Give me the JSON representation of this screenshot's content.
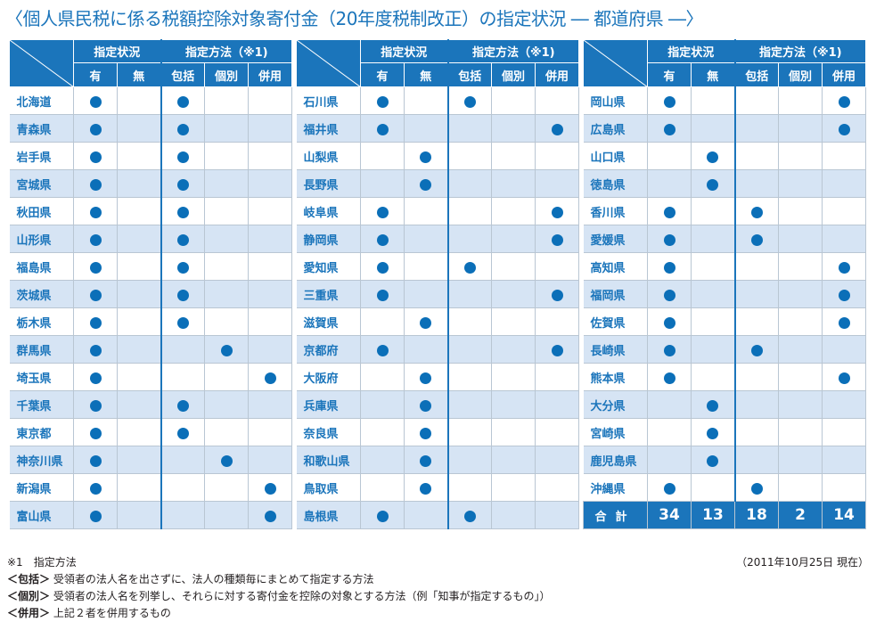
{
  "title": "〈個人県民税に係る税額控除対象寄付金（20年度税制改正）の指定状況 ― 都道府県 ―〉",
  "headers": {
    "status": "指定状況",
    "method": "指定方法（※1)",
    "yes": "有",
    "no": "無",
    "blanket": "包括",
    "individual": "個別",
    "combined": "併用"
  },
  "panels": [
    {
      "rows": [
        {
          "name": "北海道",
          "yes": true,
          "no": false,
          "blanket": true,
          "individual": false,
          "combined": false
        },
        {
          "name": "青森県",
          "yes": true,
          "no": false,
          "blanket": true,
          "individual": false,
          "combined": false
        },
        {
          "name": "岩手県",
          "yes": true,
          "no": false,
          "blanket": true,
          "individual": false,
          "combined": false
        },
        {
          "name": "宮城県",
          "yes": true,
          "no": false,
          "blanket": true,
          "individual": false,
          "combined": false
        },
        {
          "name": "秋田県",
          "yes": true,
          "no": false,
          "blanket": true,
          "individual": false,
          "combined": false
        },
        {
          "name": "山形県",
          "yes": true,
          "no": false,
          "blanket": true,
          "individual": false,
          "combined": false
        },
        {
          "name": "福島県",
          "yes": true,
          "no": false,
          "blanket": true,
          "individual": false,
          "combined": false
        },
        {
          "name": "茨城県",
          "yes": true,
          "no": false,
          "blanket": true,
          "individual": false,
          "combined": false
        },
        {
          "name": "栃木県",
          "yes": true,
          "no": false,
          "blanket": true,
          "individual": false,
          "combined": false
        },
        {
          "name": "群馬県",
          "yes": true,
          "no": false,
          "blanket": false,
          "individual": true,
          "combined": false
        },
        {
          "name": "埼玉県",
          "yes": true,
          "no": false,
          "blanket": false,
          "individual": false,
          "combined": true
        },
        {
          "name": "千葉県",
          "yes": true,
          "no": false,
          "blanket": true,
          "individual": false,
          "combined": false
        },
        {
          "name": "東京都",
          "yes": true,
          "no": false,
          "blanket": true,
          "individual": false,
          "combined": false
        },
        {
          "name": "神奈川県",
          "yes": true,
          "no": false,
          "blanket": false,
          "individual": true,
          "combined": false
        },
        {
          "name": "新潟県",
          "yes": true,
          "no": false,
          "blanket": false,
          "individual": false,
          "combined": true
        },
        {
          "name": "富山県",
          "yes": true,
          "no": false,
          "blanket": false,
          "individual": false,
          "combined": true
        }
      ]
    },
    {
      "rows": [
        {
          "name": "石川県",
          "yes": true,
          "no": false,
          "blanket": true,
          "individual": false,
          "combined": false
        },
        {
          "name": "福井県",
          "yes": true,
          "no": false,
          "blanket": false,
          "individual": false,
          "combined": true
        },
        {
          "name": "山梨県",
          "yes": false,
          "no": true,
          "blanket": false,
          "individual": false,
          "combined": false
        },
        {
          "name": "長野県",
          "yes": false,
          "no": true,
          "blanket": false,
          "individual": false,
          "combined": false
        },
        {
          "name": "岐阜県",
          "yes": true,
          "no": false,
          "blanket": false,
          "individual": false,
          "combined": true
        },
        {
          "name": "静岡県",
          "yes": true,
          "no": false,
          "blanket": false,
          "individual": false,
          "combined": true
        },
        {
          "name": "愛知県",
          "yes": true,
          "no": false,
          "blanket": true,
          "individual": false,
          "combined": false
        },
        {
          "name": "三重県",
          "yes": true,
          "no": false,
          "blanket": false,
          "individual": false,
          "combined": true
        },
        {
          "name": "滋賀県",
          "yes": false,
          "no": true,
          "blanket": false,
          "individual": false,
          "combined": false
        },
        {
          "name": "京都府",
          "yes": true,
          "no": false,
          "blanket": false,
          "individual": false,
          "combined": true
        },
        {
          "name": "大阪府",
          "yes": false,
          "no": true,
          "blanket": false,
          "individual": false,
          "combined": false
        },
        {
          "name": "兵庫県",
          "yes": false,
          "no": true,
          "blanket": false,
          "individual": false,
          "combined": false
        },
        {
          "name": "奈良県",
          "yes": false,
          "no": true,
          "blanket": false,
          "individual": false,
          "combined": false
        },
        {
          "name": "和歌山県",
          "yes": false,
          "no": true,
          "blanket": false,
          "individual": false,
          "combined": false
        },
        {
          "name": "鳥取県",
          "yes": false,
          "no": true,
          "blanket": false,
          "individual": false,
          "combined": false
        },
        {
          "name": "島根県",
          "yes": true,
          "no": false,
          "blanket": true,
          "individual": false,
          "combined": false
        }
      ]
    },
    {
      "rows": [
        {
          "name": "岡山県",
          "yes": true,
          "no": false,
          "blanket": false,
          "individual": false,
          "combined": true
        },
        {
          "name": "広島県",
          "yes": true,
          "no": false,
          "blanket": false,
          "individual": false,
          "combined": true
        },
        {
          "name": "山口県",
          "yes": false,
          "no": true,
          "blanket": false,
          "individual": false,
          "combined": false
        },
        {
          "name": "徳島県",
          "yes": false,
          "no": true,
          "blanket": false,
          "individual": false,
          "combined": false
        },
        {
          "name": "香川県",
          "yes": true,
          "no": false,
          "blanket": true,
          "individual": false,
          "combined": false
        },
        {
          "name": "愛媛県",
          "yes": true,
          "no": false,
          "blanket": true,
          "individual": false,
          "combined": false
        },
        {
          "name": "高知県",
          "yes": true,
          "no": false,
          "blanket": false,
          "individual": false,
          "combined": true
        },
        {
          "name": "福岡県",
          "yes": true,
          "no": false,
          "blanket": false,
          "individual": false,
          "combined": true
        },
        {
          "name": "佐賀県",
          "yes": true,
          "no": false,
          "blanket": false,
          "individual": false,
          "combined": true
        },
        {
          "name": "長崎県",
          "yes": true,
          "no": false,
          "blanket": true,
          "individual": false,
          "combined": false
        },
        {
          "name": "熊本県",
          "yes": true,
          "no": false,
          "blanket": false,
          "individual": false,
          "combined": true
        },
        {
          "name": "大分県",
          "yes": false,
          "no": true,
          "blanket": false,
          "individual": false,
          "combined": false
        },
        {
          "name": "宮崎県",
          "yes": false,
          "no": true,
          "blanket": false,
          "individual": false,
          "combined": false
        },
        {
          "name": "鹿児島県",
          "yes": false,
          "no": true,
          "blanket": false,
          "individual": false,
          "combined": false
        },
        {
          "name": "沖縄県",
          "yes": true,
          "no": false,
          "blanket": true,
          "individual": false,
          "combined": false
        }
      ],
      "total": {
        "label": "合計",
        "yes": "34",
        "no": "13",
        "blanket": "18",
        "individual": "2",
        "combined": "14"
      }
    }
  ],
  "notes": {
    "asof": "（2011年10月25日 現在）",
    "note1": "※1　指定方法",
    "blanket_label": "＜包括＞",
    "blanket_text": "受領者の法人名を出さずに、法人の種類毎にまとめて指定する方法",
    "individual_label": "＜個別＞",
    "individual_text": "受領者の法人名を列挙し、それらに対する寄付金を控除の対象とする方法（例「知事が指定するもの」）",
    "combined_label": "＜併用＞",
    "combined_text": "上記２者を併用するもの"
  },
  "colors": {
    "accent": "#1b75bb",
    "stripe": "#d6e4f4",
    "dot": "#0b6fb8"
  }
}
